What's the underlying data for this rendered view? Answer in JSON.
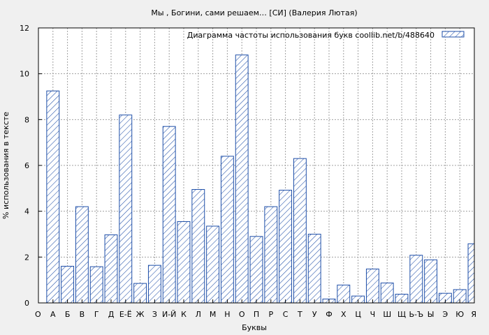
{
  "chart_data": {
    "type": "bar",
    "title": "Мы , Богини, сами решаем… [СИ] (Валерия Лютая)",
    "xlabel": "Буквы",
    "ylabel": "% использования в тексте",
    "legend": {
      "label": "Диаграмма частоты использования букв  coollib.net/b/488640",
      "placement": "top-right"
    },
    "ylim": [
      0,
      12
    ],
    "yticks": [
      0,
      2,
      4,
      6,
      8,
      10,
      12
    ],
    "grid": true,
    "categories": [
      "О",
      "А",
      "Б",
      "В",
      "Г",
      "Д",
      "Е-Ё",
      "Ж",
      "З",
      "И-Й",
      "К",
      "Л",
      "М",
      "Н",
      "О",
      "П",
      "Р",
      "С",
      "Т",
      "У",
      "Ф",
      "Х",
      "Ц",
      "Ч",
      "Ш",
      "Щ",
      "Ь-Ъ",
      "Ы",
      "Э",
      "Ю",
      "Я"
    ],
    "values": [
      null,
      9.25,
      1.6,
      4.2,
      1.58,
      2.97,
      8.2,
      0.85,
      1.64,
      7.7,
      3.55,
      4.95,
      3.35,
      6.4,
      10.82,
      2.9,
      4.2,
      4.92,
      6.3,
      3.0,
      0.17,
      0.78,
      0.3,
      1.48,
      0.87,
      0.38,
      2.08,
      1.88,
      0.42,
      0.58,
      2.58
    ],
    "colors": {
      "bar_stroke": "#1f4fa8",
      "hatch": "#1f4fa8",
      "grid": "#a0a0a0",
      "background": "#f0f0f0",
      "plot_background": "#ffffff"
    }
  }
}
